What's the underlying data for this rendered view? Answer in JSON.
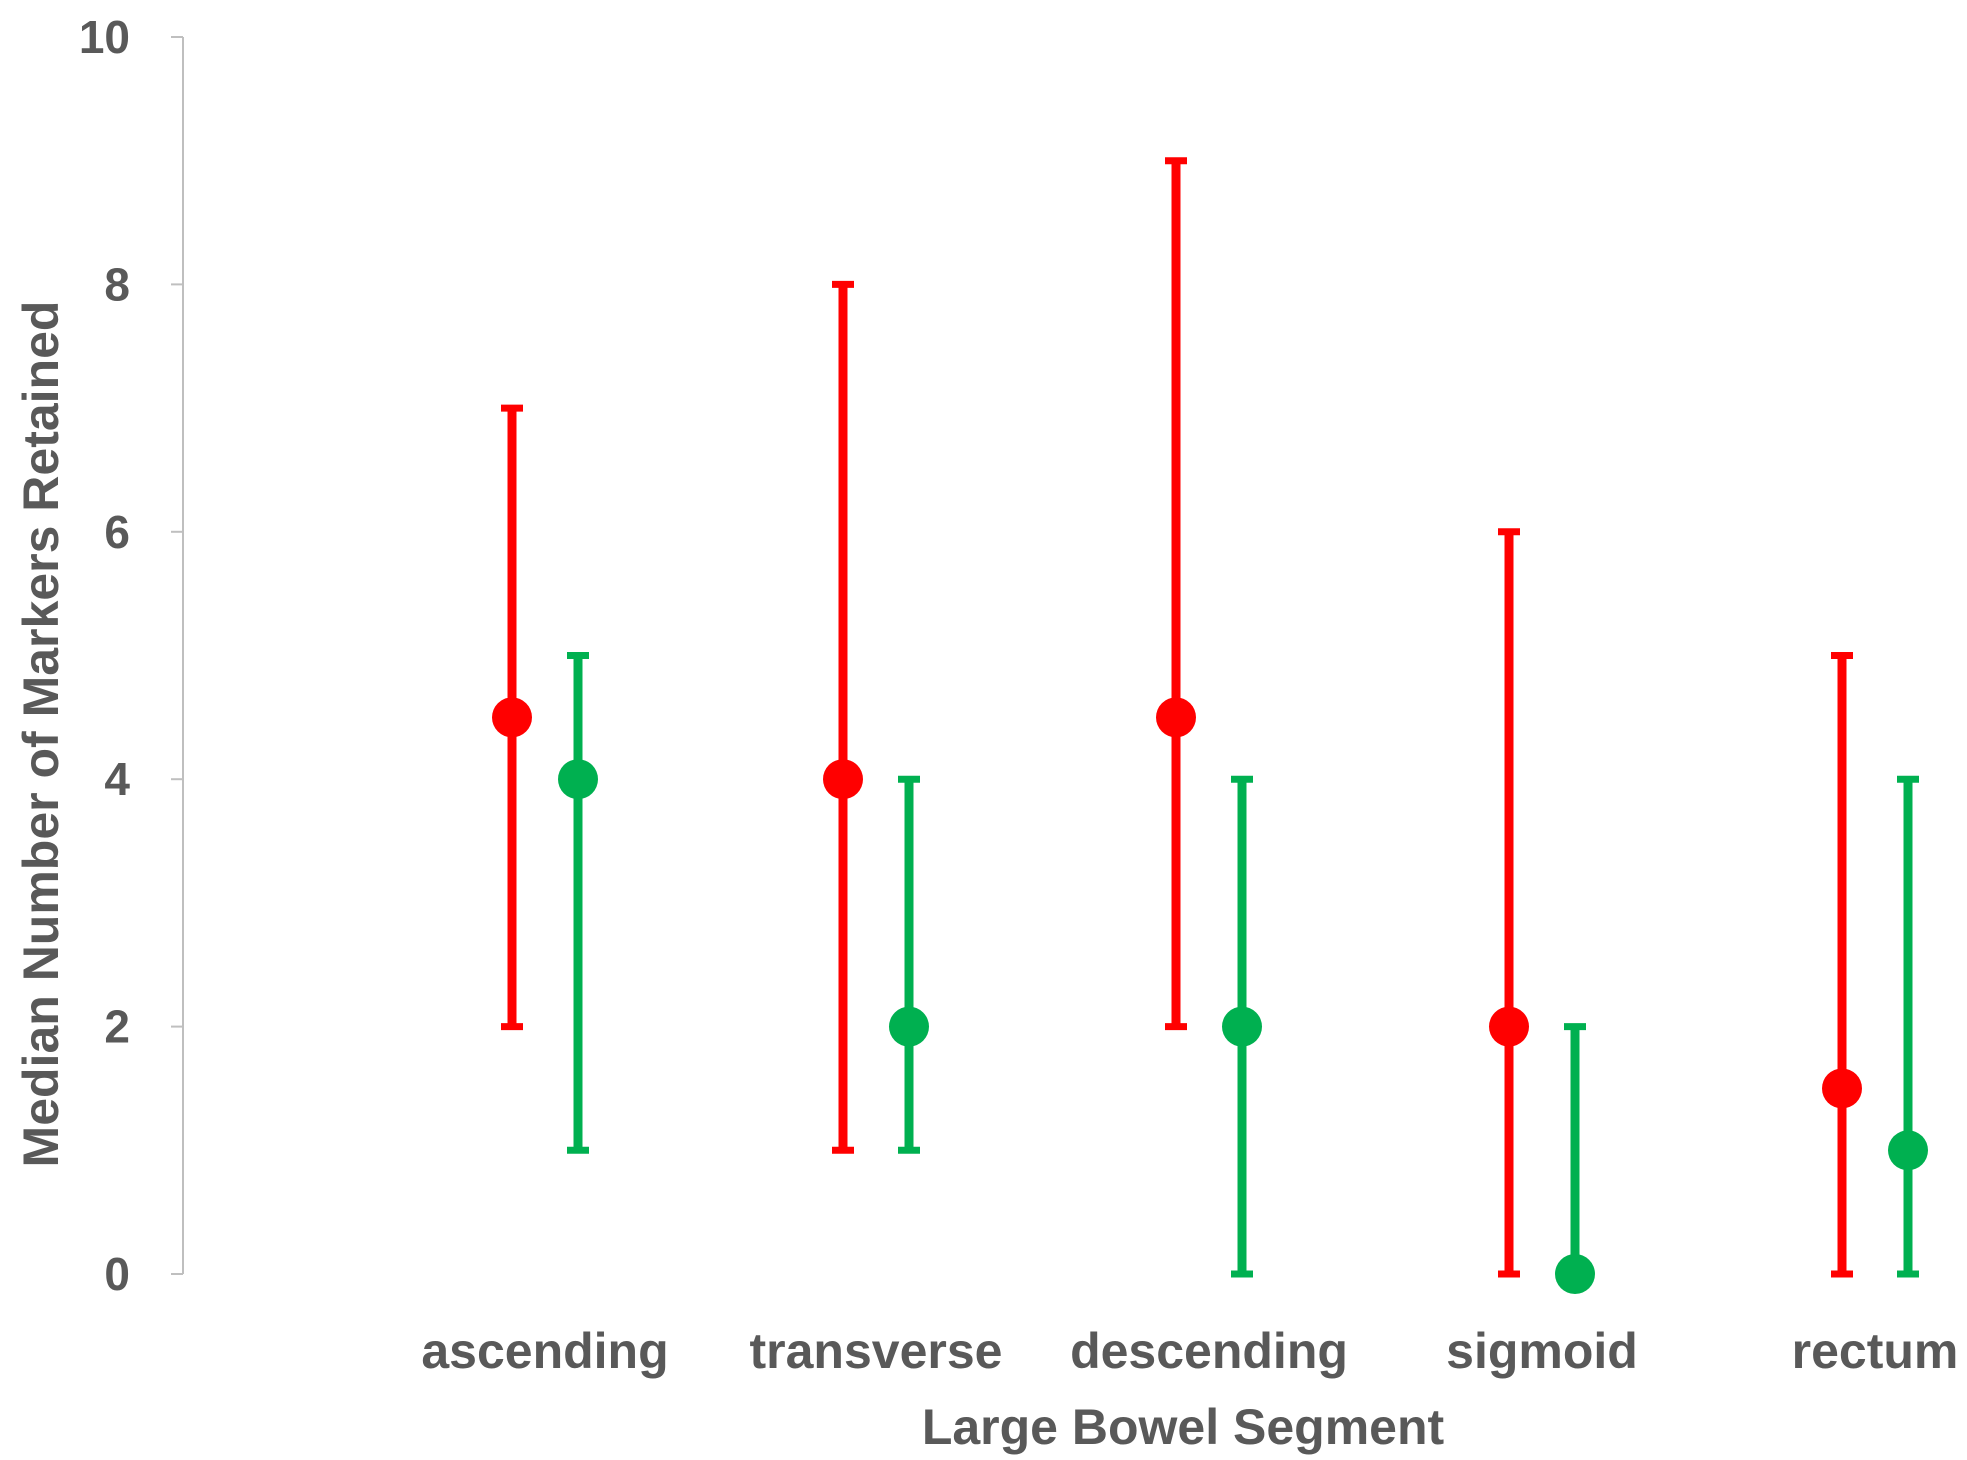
{
  "chart_data": {
    "type": "scatter",
    "title": "",
    "xlabel": "Large Bowel Segment",
    "ylabel": "Median Number of Markers Retained",
    "ylim": [
      0,
      10
    ],
    "yticks": [
      "0",
      "2",
      "4",
      "6",
      "8",
      "10"
    ],
    "categories": [
      "ascending",
      "transverse",
      "descending",
      "sigmoid",
      "rectum"
    ],
    "grid": false,
    "legend": "none",
    "series": [
      {
        "color": "#ff0000",
        "values": [
          4.5,
          4,
          4.5,
          2,
          1.5
        ],
        "lower": [
          2,
          1,
          2,
          0,
          0
        ],
        "upper": [
          7,
          8,
          9,
          6,
          5
        ]
      },
      {
        "color": "#00b050",
        "values": [
          4,
          2,
          2,
          0,
          1
        ],
        "lower": [
          1,
          1,
          0,
          0,
          0
        ],
        "upper": [
          5,
          4,
          4,
          2,
          4
        ]
      }
    ]
  }
}
